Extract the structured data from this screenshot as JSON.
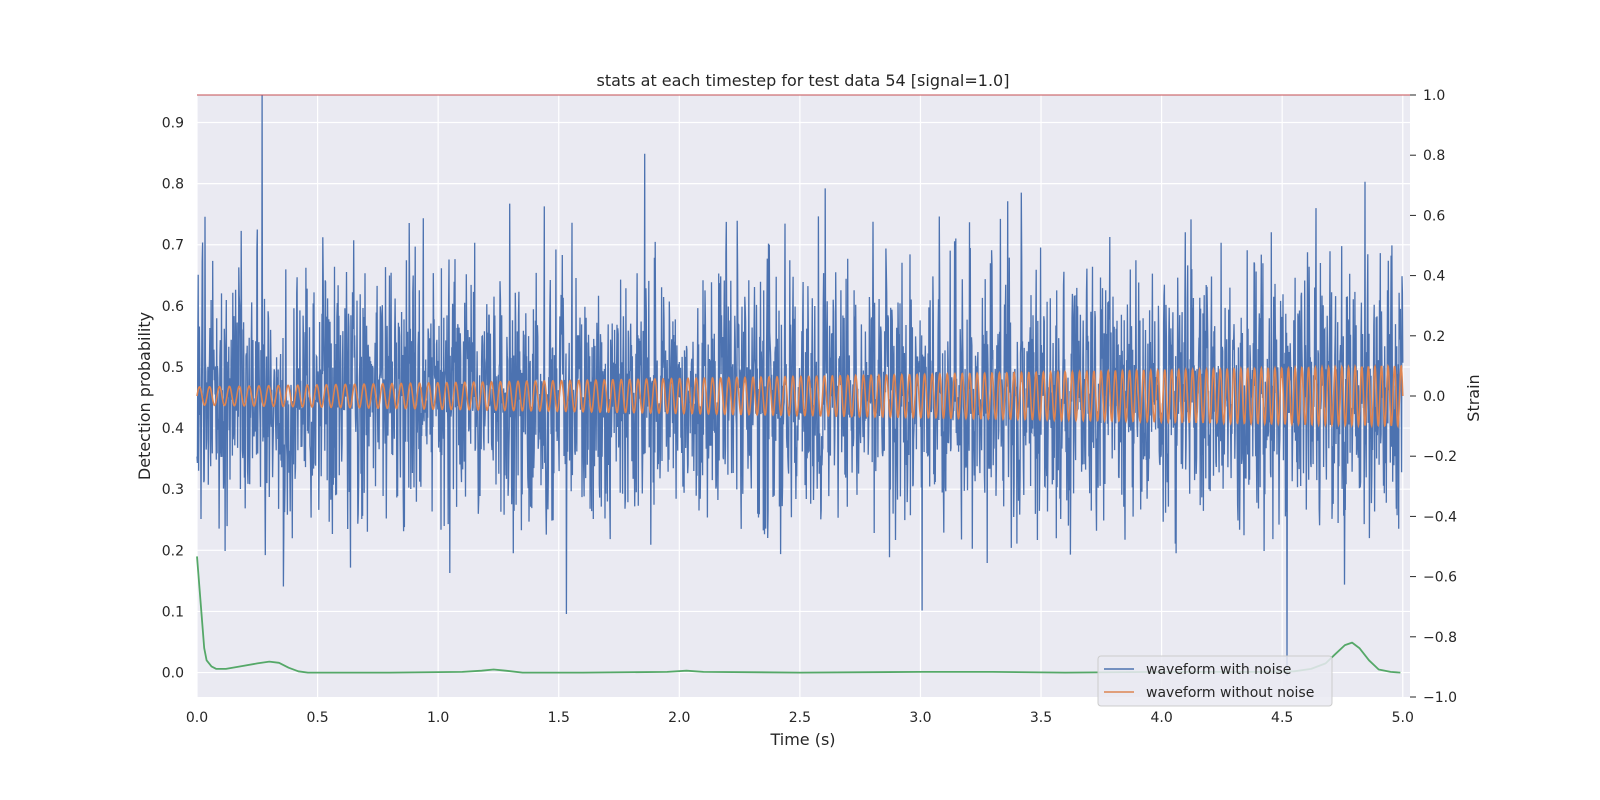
{
  "chart_data": {
    "type": "line",
    "title": "stats at each timestep for test data 54 [signal=1.0]",
    "xlabel": "Time (s)",
    "ylabel_left": "Detection probability",
    "ylabel_right": "Strain",
    "xlim": [
      0.0,
      5.03
    ],
    "ylim_left": [
      -0.04,
      0.945
    ],
    "ylim_right": [
      -1.0,
      1.0
    ],
    "x_ticks": [
      "0.0",
      "0.5",
      "1.0",
      "1.5",
      "2.0",
      "2.5",
      "3.0",
      "3.5",
      "4.0",
      "4.5",
      "5.0"
    ],
    "y_left_ticks": [
      "0.0",
      "0.1",
      "0.2",
      "0.3",
      "0.4",
      "0.5",
      "0.6",
      "0.7",
      "0.8",
      "0.9"
    ],
    "y_right_ticks": [
      "−1.0",
      "−0.8",
      "−0.6",
      "−0.4",
      "−0.2",
      "0.0",
      "0.2",
      "0.4",
      "0.6",
      "0.8",
      "1.0"
    ],
    "grid": true,
    "legend_position": "lower-right",
    "threshold": {
      "axis": "right",
      "value": 1.0,
      "color": "#c44e52"
    },
    "series": [
      {
        "name": "waveform with noise",
        "axis": "right",
        "color": "#4c72b0",
        "duration": 5.0,
        "samples": 3000,
        "mean": 0.0,
        "std": 0.21,
        "max": 1.0,
        "min": -0.93
      },
      {
        "name": "waveform without noise",
        "axis": "right",
        "color": "#dd8452",
        "duration": 5.0,
        "freq_start": 24,
        "freq_end": 37,
        "amp_start": 0.03,
        "amp_end": 0.1
      },
      {
        "axis": "left",
        "color": "#55a868",
        "x": [
          0.0,
          0.01,
          0.02,
          0.03,
          0.04,
          0.06,
          0.08,
          0.12,
          0.18,
          0.25,
          0.3,
          0.34,
          0.38,
          0.42,
          0.46,
          0.55,
          0.8,
          1.1,
          1.18,
          1.23,
          1.28,
          1.35,
          1.6,
          1.95,
          2.03,
          2.1,
          2.5,
          3.0,
          3.3,
          3.6,
          4.0,
          4.4,
          4.55,
          4.62,
          4.68,
          4.72,
          4.76,
          4.79,
          4.82,
          4.86,
          4.9,
          4.95,
          4.99
        ],
        "y": [
          0.19,
          0.14,
          0.09,
          0.04,
          0.02,
          0.01,
          0.006,
          0.006,
          0.01,
          0.015,
          0.018,
          0.016,
          0.008,
          0.002,
          0.0,
          0.0,
          0.0,
          0.001,
          0.003,
          0.005,
          0.003,
          0.0,
          0.0,
          0.001,
          0.003,
          0.001,
          0.0,
          0.001,
          0.001,
          0.0,
          0.001,
          0.001,
          0.002,
          0.006,
          0.015,
          0.03,
          0.045,
          0.049,
          0.04,
          0.02,
          0.005,
          0.001,
          0.0
        ]
      }
    ]
  }
}
